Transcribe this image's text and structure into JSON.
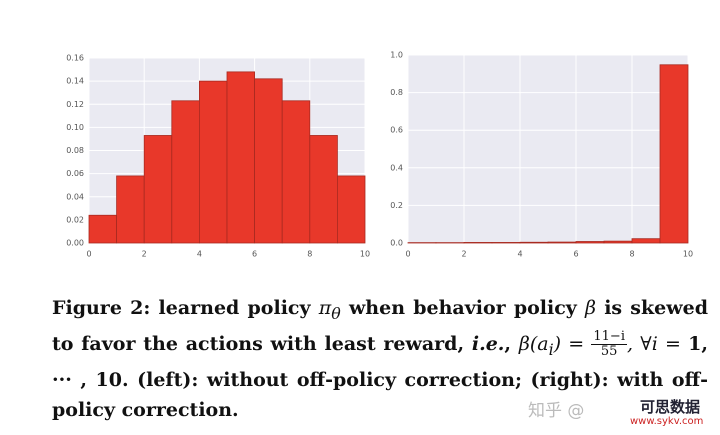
{
  "chart_data": [
    {
      "type": "histogram",
      "bins": [
        0,
        1,
        2,
        3,
        4,
        5,
        6,
        7,
        8,
        9,
        10
      ],
      "values": [
        0.024,
        0.058,
        0.093,
        0.123,
        0.14,
        0.148,
        0.142,
        0.123,
        0.093,
        0.058
      ],
      "color": "#e8382a",
      "xlim": [
        0,
        10
      ],
      "xticks": [
        0,
        2,
        4,
        6,
        8,
        10
      ],
      "ylim": [
        0,
        0.16
      ],
      "yticks": [
        {
          "value": 0,
          "label": "0.00"
        },
        {
          "value": 0.02,
          "label": "0.02"
        },
        {
          "value": 0.04,
          "label": "0.04"
        },
        {
          "value": 0.06,
          "label": "0.06"
        },
        {
          "value": 0.08,
          "label": "0.08"
        },
        {
          "value": 0.1,
          "label": "0.10"
        },
        {
          "value": 0.12,
          "label": "0.12"
        },
        {
          "value": 0.14,
          "label": "0.14"
        },
        {
          "value": 0.16,
          "label": "0.16"
        }
      ],
      "grid": true
    },
    {
      "type": "histogram",
      "bins": [
        0,
        1,
        2,
        3,
        4,
        5,
        6,
        7,
        8,
        9,
        10
      ],
      "values": [
        0.002,
        0.002,
        0.003,
        0.003,
        0.004,
        0.005,
        0.008,
        0.01,
        0.023,
        0.948
      ],
      "color": "#e8382a",
      "xlim": [
        0,
        10
      ],
      "xticks": [
        0,
        2,
        4,
        6,
        8,
        10
      ],
      "ylim": [
        0,
        1
      ],
      "yticks": [
        {
          "value": 0,
          "label": "0.0"
        },
        {
          "value": 0.2,
          "label": "0.2"
        },
        {
          "value": 0.4,
          "label": "0.4"
        },
        {
          "value": 0.6,
          "label": "0.6"
        },
        {
          "value": 0.8,
          "label": "0.8"
        },
        {
          "value": 1,
          "label": "1.0"
        }
      ],
      "grid": true
    }
  ],
  "caption": {
    "parts": [
      "Figure 2: learned policy ",
      "π",
      "θ",
      " when behavior policy ",
      "β",
      " is skewed to favor the actions with least reward, ",
      "i.e.",
      ", ",
      "β(a",
      "i",
      ") = ",
      "11−i",
      "55",
      ", ∀i = ",
      "1, ··· , 10. (left): without off-policy correction; (right): with off-policy correction."
    ]
  },
  "watermark": {
    "site": "知乎 @",
    "brand": "可思数据",
    "url": "www.sykv.com"
  }
}
